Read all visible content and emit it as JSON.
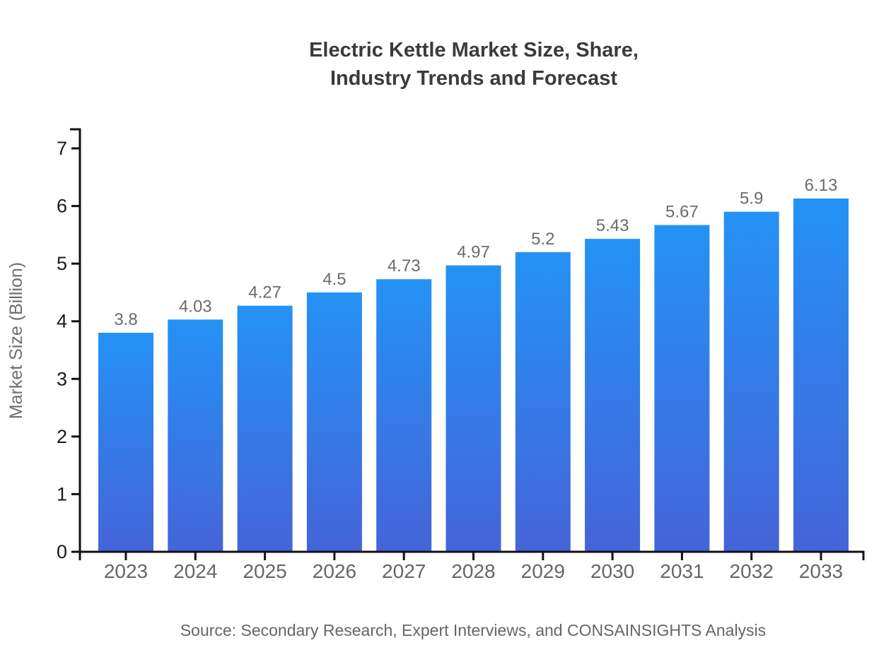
{
  "page": {
    "background": "#ffffff"
  },
  "chart_data": {
    "type": "bar",
    "title": "Electric Kettle Market Size, Share, Industry Trends and Forecast",
    "title_lines": [
      "Electric Kettle Market Size, Share,",
      "Industry Trends and Forecast"
    ],
    "categories": [
      "2023",
      "2024",
      "2025",
      "2026",
      "2027",
      "2028",
      "2029",
      "2030",
      "2031",
      "2032",
      "2033"
    ],
    "values": [
      3.8,
      4.03,
      4.27,
      4.5,
      4.73,
      4.97,
      5.2,
      5.43,
      5.67,
      5.9,
      6.13
    ],
    "value_labels": [
      "3.8",
      "4.03",
      "4.27",
      "4.5",
      "4.73",
      "4.97",
      "5.2",
      "5.43",
      "5.67",
      "5.9",
      "6.13"
    ],
    "xlabel": "",
    "ylabel": "Market Size (Billion)",
    "ylim": [
      0,
      7
    ],
    "yticks": [
      0,
      1,
      2,
      3,
      4,
      5,
      6,
      7
    ],
    "grid": false,
    "legend": "none",
    "source": "Source: Secondary Research, Expert Interviews, and CONSAINSIGHTS Analysis",
    "colors": {
      "bar_gradient_top": "#2492f5",
      "bar_gradient_bottom": "#4564d9",
      "title": "#3b3b3b",
      "axis": "#111111",
      "y_tick_label": "#1a1a1a",
      "category_label": "#666666",
      "value_label": "#6b6b6b",
      "axis_label": "#6e6e6e",
      "source": "#666666"
    }
  }
}
